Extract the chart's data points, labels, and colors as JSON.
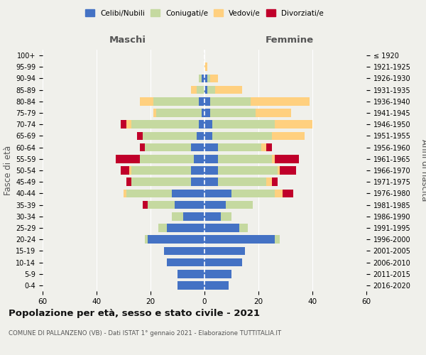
{
  "age_groups": [
    "0-4",
    "5-9",
    "10-14",
    "15-19",
    "20-24",
    "25-29",
    "30-34",
    "35-39",
    "40-44",
    "45-49",
    "50-54",
    "55-59",
    "60-64",
    "65-69",
    "70-74",
    "75-79",
    "80-84",
    "85-89",
    "90-94",
    "95-99",
    "100+"
  ],
  "birth_years": [
    "2016-2020",
    "2011-2015",
    "2006-2010",
    "2001-2005",
    "1996-2000",
    "1991-1995",
    "1986-1990",
    "1981-1985",
    "1976-1980",
    "1971-1975",
    "1966-1970",
    "1961-1965",
    "1956-1960",
    "1951-1955",
    "1946-1950",
    "1941-1945",
    "1936-1940",
    "1931-1935",
    "1926-1930",
    "1921-1925",
    "≤ 1920"
  ],
  "maschi": {
    "celibi": [
      10,
      10,
      14,
      15,
      21,
      14,
      8,
      11,
      12,
      5,
      5,
      4,
      5,
      3,
      2,
      1,
      2,
      0,
      1,
      0,
      0
    ],
    "coniugati": [
      0,
      0,
      0,
      0,
      1,
      3,
      4,
      10,
      17,
      22,
      22,
      20,
      17,
      20,
      25,
      17,
      17,
      3,
      1,
      0,
      0
    ],
    "vedove": [
      0,
      0,
      0,
      0,
      0,
      0,
      0,
      0,
      1,
      0,
      1,
      0,
      0,
      0,
      2,
      1,
      5,
      2,
      0,
      0,
      0
    ],
    "divorziate": [
      0,
      0,
      0,
      0,
      0,
      0,
      0,
      2,
      0,
      2,
      3,
      9,
      2,
      2,
      2,
      0,
      0,
      0,
      0,
      0,
      0
    ]
  },
  "femmine": {
    "nubili": [
      9,
      10,
      14,
      15,
      26,
      13,
      6,
      8,
      10,
      5,
      5,
      5,
      5,
      3,
      3,
      2,
      2,
      1,
      1,
      0,
      0
    ],
    "coniugate": [
      0,
      0,
      0,
      0,
      2,
      3,
      4,
      10,
      16,
      18,
      22,
      20,
      16,
      22,
      23,
      17,
      15,
      3,
      1,
      0,
      0
    ],
    "vedove": [
      0,
      0,
      0,
      0,
      0,
      0,
      0,
      0,
      3,
      2,
      1,
      1,
      2,
      12,
      14,
      13,
      22,
      10,
      3,
      1,
      0
    ],
    "divorziate": [
      0,
      0,
      0,
      0,
      0,
      0,
      0,
      0,
      4,
      2,
      6,
      9,
      2,
      0,
      0,
      0,
      0,
      0,
      0,
      0,
      0
    ]
  },
  "colors": {
    "celibi_nubili": "#4472C4",
    "coniugati": "#C5D9A0",
    "vedovi": "#FFD07F",
    "divorziati": "#C0002A"
  },
  "title": "Popolazione per età, sesso e stato civile - 2021",
  "subtitle": "COMUNE DI PALLANZENO (VB) - Dati ISTAT 1° gennaio 2021 - Elaborazione TUTTITALIA.IT",
  "xlabel_left": "Maschi",
  "xlabel_right": "Femmine",
  "ylabel_left": "Fasce di età",
  "ylabel_right": "Anni di nascita",
  "xlim": 60,
  "bg_color": "#f0f0eb"
}
